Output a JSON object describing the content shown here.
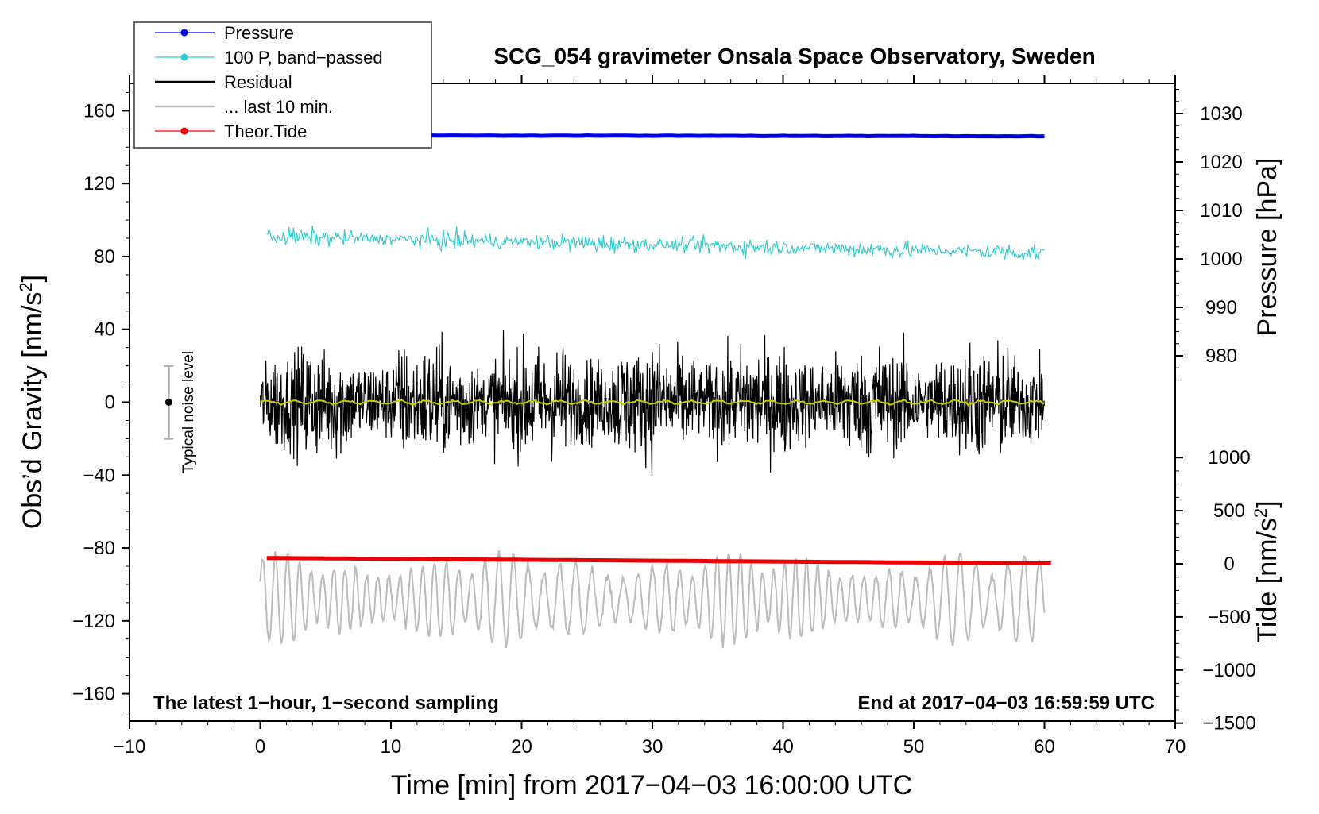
{
  "chart_data": {
    "type": "line",
    "title": "SCG_054 gravimeter Onsala Space Observatory, Sweden",
    "xlabel": "Time [min] from 2017−04−03 16:00:00 UTC",
    "xlim": [
      -10,
      70
    ],
    "xticks": [
      -10,
      0,
      10,
      20,
      30,
      40,
      50,
      60,
      70
    ],
    "xtick_labels": [
      "−10",
      "0",
      "10",
      "20",
      "30",
      "40",
      "50",
      "60",
      "70"
    ],
    "left_axis": {
      "label_main": "Obs’d Gravity [nm/s",
      "label_sup": "2",
      "label_close": "]",
      "ylim": [
        -175,
        175
      ],
      "ticks": [
        160,
        120,
        80,
        40,
        0,
        -40,
        -80,
        -120,
        -160
      ],
      "tick_labels": [
        "160",
        "120",
        "80",
        "40",
        "0",
        "−40",
        "−80",
        "−120",
        "−160"
      ]
    },
    "pressure_axis": {
      "label": "Pressure [hPa]",
      "ticks": [
        1030,
        1020,
        1010,
        1000,
        990,
        980
      ],
      "tick_labels": [
        "1030",
        "1020",
        "1010",
        "1000",
        "990",
        "980"
      ]
    },
    "tide_axis": {
      "label_main": "Tide [nm/s",
      "label_sup": "2",
      "label_close": "]",
      "ticks": [
        1000,
        500,
        0,
        -500,
        -1000,
        -1500
      ],
      "tick_labels": [
        "1000",
        "500",
        "0",
        "−500",
        "−1000",
        "−1500"
      ]
    },
    "legend": [
      {
        "name": "Pressure",
        "color": "#0000ee",
        "marker": true
      },
      {
        "name": "100 P, band−passed",
        "color": "#33cccc",
        "marker": true
      },
      {
        "name": "Residual",
        "color": "#000000",
        "marker": false
      },
      {
        "name": "... last 10 min.",
        "color": "#bbbbbb",
        "marker": false
      },
      {
        "name": "Theor.Tide",
        "color": "#ee0000",
        "marker": true
      }
    ],
    "series": [
      {
        "name": "Pressure",
        "color": "#0000ee",
        "x_range": [
          0,
          60
        ],
        "level_start": 146.5,
        "level_end": 146.0,
        "noise": 0.2
      },
      {
        "name": "100 P, band−passed",
        "color": "#33cccc",
        "x_range": [
          0.5,
          60
        ],
        "level_start": 91,
        "level_end": 82,
        "amplitude": 4,
        "peak": 9
      },
      {
        "name": "Residual",
        "color": "#000000",
        "x_range": [
          0,
          60
        ],
        "level": 0,
        "amplitude": 12,
        "peak_min": -43,
        "peak_max": 40
      },
      {
        "name": "Residual smoothed",
        "color": "#cccc00",
        "x_range": [
          0,
          60
        ],
        "level": 0,
        "amplitude": 1
      },
      {
        "name": "... last 10 min.",
        "color": "#bbbbbb",
        "x_range": [
          0,
          60
        ],
        "level": -108,
        "amplitude": 16,
        "peak_min": -135,
        "peak_max": -80
      },
      {
        "name": "Theor.Tide",
        "color": "#ee0000",
        "x_range": [
          0.5,
          60.5
        ],
        "level_start": -85.5,
        "level_end": -88.5
      }
    ],
    "noise_indicator": {
      "label": "Typical noise level",
      "x": -7,
      "center": 0,
      "half_range": 20
    },
    "annotations": {
      "bottom_left": "The latest 1−hour, 1−second sampling",
      "bottom_right": "End at 2017−04−03 16:59:59 UTC"
    }
  }
}
